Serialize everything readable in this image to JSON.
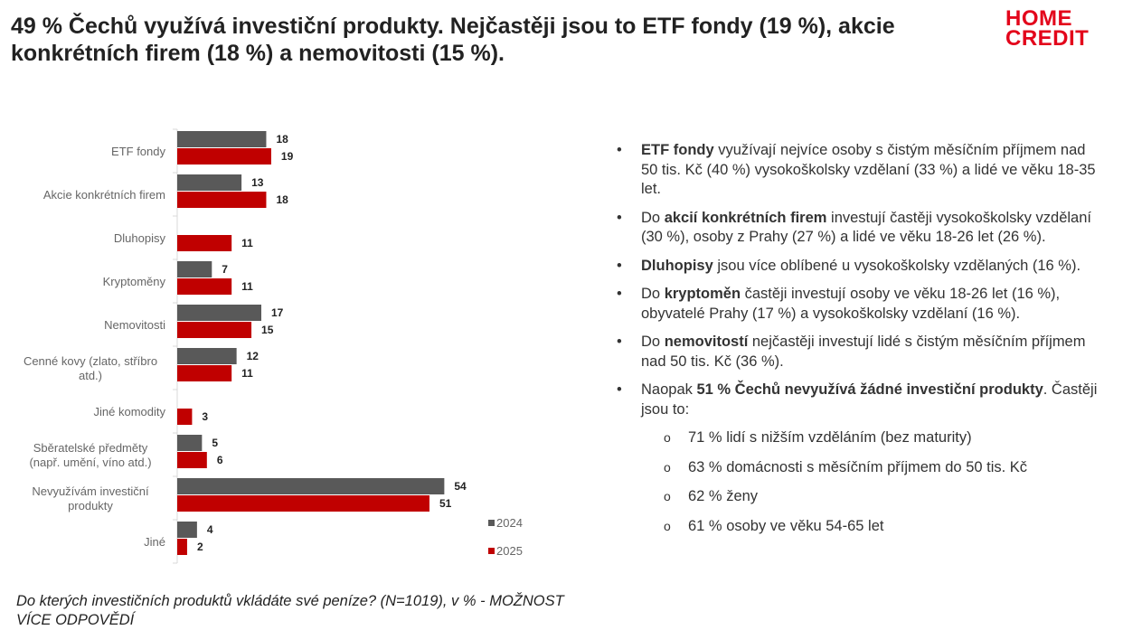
{
  "title": "49 % Čechů využívá investiční produkty. Nejčastěji jsou to ETF fondy (19 %), akcie konkrétních firem (18 %) a nemovitosti (15 %).",
  "logo": {
    "line1": "HOME",
    "line2": "CREDIT",
    "color": "#e3051b"
  },
  "chart_data": {
    "type": "bar",
    "orientation": "horizontal",
    "categories": [
      "ETF fondy",
      "Akcie konkrétních firem",
      "Dluhopisy",
      "Kryptoměny",
      "Nemovitosti",
      "Cenné kovy (zlato, stříbro atd.)",
      "Jiné komodity",
      "Sběratelské předměty (např. umění, víno atd.)",
      "Nevyužívám investiční produkty",
      "Jiné"
    ],
    "category_lines": [
      [
        "ETF fondy"
      ],
      [
        "Akcie konkrétních firem"
      ],
      [
        "Dluhopisy"
      ],
      [
        "Kryptoměny"
      ],
      [
        "Nemovitosti"
      ],
      [
        "Cenné kovy (zlato, stříbro",
        "atd.)"
      ],
      [
        "Jiné komodity"
      ],
      [
        "Sběratelské předměty",
        "(např. umění, víno atd.)"
      ],
      [
        "Nevyužívám investiční",
        "produkty"
      ],
      [
        "Jiné"
      ]
    ],
    "series": [
      {
        "name": "2024",
        "color": "#595959",
        "values": [
          18,
          13,
          null,
          7,
          17,
          12,
          null,
          5,
          54,
          4
        ]
      },
      {
        "name": "2025",
        "color": "#c00000",
        "values": [
          19,
          18,
          11,
          11,
          15,
          11,
          3,
          6,
          51,
          2
        ]
      }
    ],
    "xlim": [
      0,
      60
    ],
    "grid": false,
    "legend": "bottom-right",
    "data_labels": true
  },
  "bullets": [
    {
      "bold": "ETF fondy",
      "pre": "",
      "post": " využívají nejvíce osoby s čistým měsíčním příjmem nad 50 tis. Kč (40 %) vysokoškolsky vzdělaní (33 %) a lidé ve věku 18-35 let."
    },
    {
      "pre": "Do ",
      "bold": "akcií konkrétních firem",
      "post": " investují častěji vysokoškolsky vzdělaní (30 %), osoby z Prahy (27 %) a lidé ve věku 18-26 let (26 %)."
    },
    {
      "pre": "",
      "bold": "Dluhopisy",
      "post": " jsou více oblíbené u vysokoškolsky vzdělaných (16 %)."
    },
    {
      "pre": "Do ",
      "bold": "kryptoměn",
      "post": " častěji investují osoby ve věku 18-26 let (16 %), obyvatelé Prahy (17 %) a vysokoškolsky vzdělaní (16 %)."
    },
    {
      "pre": "Do ",
      "bold": "nemovitostí",
      "post": " nejčastěji investují lidé s čistým měsíčním příjmem nad 50 tis. Kč (36 %)."
    },
    {
      "pre": "Naopak ",
      "bold": "51 % Čechů nevyužívá žádné investiční produkty",
      "post": ". Častěji jsou to:"
    }
  ],
  "sub_bullets": [
    "71 % lidí s nižším vzděláním (bez maturity)",
    "63 % domácnosti s měsíčním příjmem do 50 tis. Kč",
    "62 % ženy",
    "61 % osoby ve věku 54-65 let"
  ],
  "bullet_char": "•",
  "sub_bullet_char": "o",
  "footnote": "Do kterých investičních produktů vkládáte své peníze? (N=1019), v % - MOŽNOST VÍCE ODPOVĚDÍ"
}
